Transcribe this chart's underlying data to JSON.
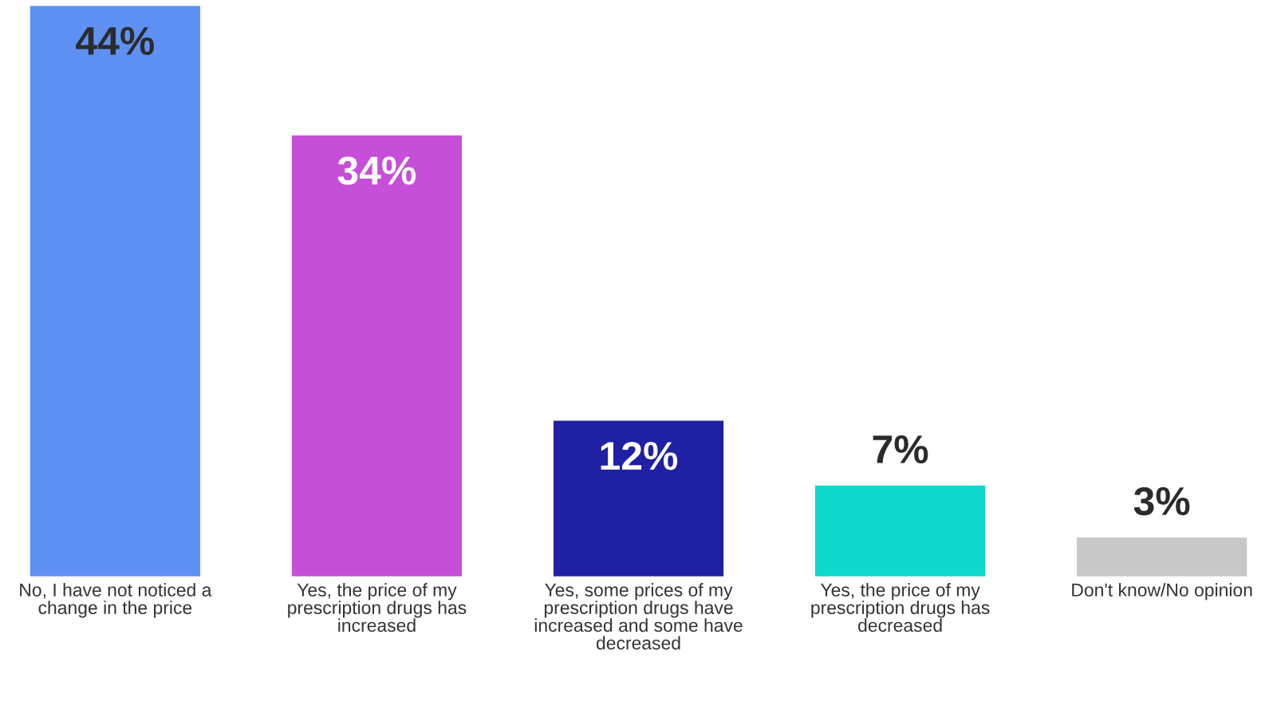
{
  "chart_data": {
    "type": "bar",
    "categories": [
      "No, I have not noticed a change in the price",
      "Yes, the price of my prescription drugs has increased",
      "Yes, some prices of my prescription drugs have increased and some have decreased",
      "Yes, the price of my prescription drugs has decreased",
      "Don't know/No opinion"
    ],
    "values": [
      44,
      34,
      12,
      7,
      3
    ],
    "colors": [
      "#5f91f5",
      "#c64fd8",
      "#2020a4",
      "#0fd8cc",
      "#c8c8c8"
    ],
    "ylim": [
      0,
      44
    ],
    "data_labels": true,
    "value_labels": [
      "44%",
      "34%",
      "12%",
      "7%",
      "3%"
    ]
  }
}
